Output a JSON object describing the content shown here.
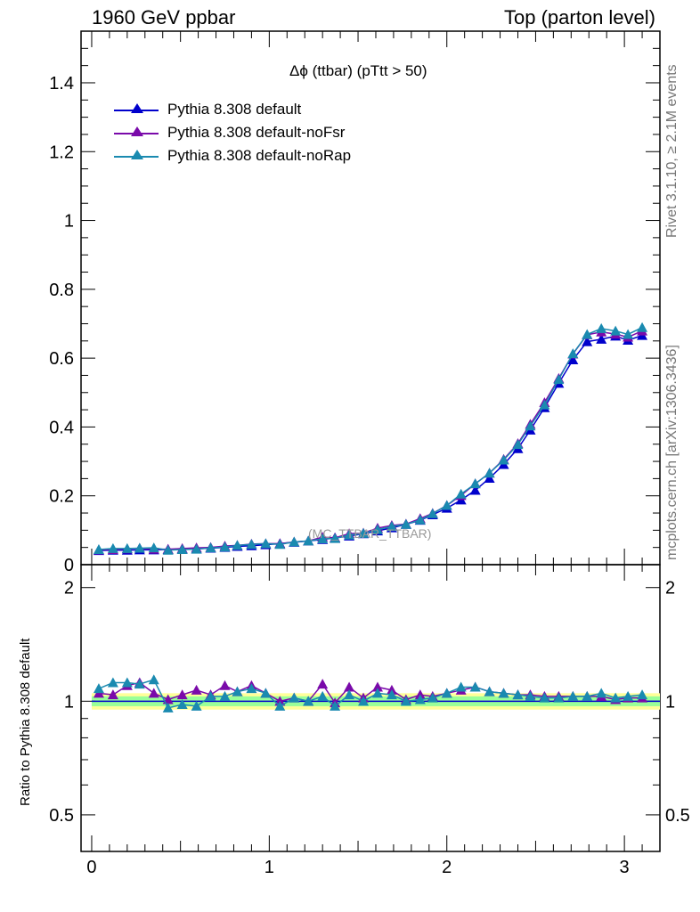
{
  "header": {
    "left": "1960 GeV ppbar",
    "right": "Top (parton level)"
  },
  "side_text": {
    "rivet": "Rivet 3.1.10, ≥ 2.1M events",
    "mcplots": "mcplots.cern.ch [arXiv:1306.3436]"
  },
  "watermark": "(MC_TTBAR_TTBAR)",
  "colors": {
    "default": "#0000cc",
    "noFsr": "#7a0aaa",
    "noRap": "#1a8ab0",
    "band_inner": "#99ff99",
    "band_outer": "#ffff99"
  },
  "chart_data": [
    {
      "type": "line",
      "title": "Δϕ (ttbar) (pTtt > 50)",
      "xlabel": "",
      "ylabel": "",
      "xlim": [
        -0.06,
        3.2
      ],
      "ylim": [
        0,
        1.55
      ],
      "yticks": [
        "0",
        "0.2",
        "0.4",
        "0.6",
        "0.8",
        "1",
        "1.2",
        "1.4"
      ],
      "legend_position": "top-left",
      "x": [
        0.04,
        0.12,
        0.2,
        0.27,
        0.35,
        0.43,
        0.51,
        0.59,
        0.67,
        0.75,
        0.82,
        0.9,
        0.98,
        1.06,
        1.14,
        1.22,
        1.3,
        1.37,
        1.45,
        1.53,
        1.61,
        1.69,
        1.77,
        1.85,
        1.92,
        2.0,
        2.08,
        2.16,
        2.24,
        2.32,
        2.4,
        2.47,
        2.55,
        2.63,
        2.71,
        2.79,
        2.87,
        2.95,
        3.02,
        3.1
      ],
      "series": [
        {
          "name": "Pythia 8.308 default",
          "color": "#0000cc",
          "values": [
            0.041,
            0.042,
            0.042,
            0.043,
            0.043,
            0.044,
            0.045,
            0.046,
            0.048,
            0.05,
            0.053,
            0.055,
            0.058,
            0.061,
            0.065,
            0.069,
            0.073,
            0.078,
            0.083,
            0.09,
            0.098,
            0.107,
            0.117,
            0.129,
            0.145,
            0.164,
            0.188,
            0.216,
            0.251,
            0.291,
            0.337,
            0.391,
            0.456,
            0.527,
            0.595,
            0.648,
            0.655,
            0.664,
            0.652,
            0.666
          ]
        },
        {
          "name": "Pythia 8.308 default-noFsr",
          "color": "#7a0aaa",
          "values": [
            0.043,
            0.044,
            0.046,
            0.048,
            0.045,
            0.045,
            0.047,
            0.049,
            0.05,
            0.054,
            0.056,
            0.06,
            0.061,
            0.061,
            0.066,
            0.069,
            0.08,
            0.078,
            0.09,
            0.092,
            0.106,
            0.114,
            0.118,
            0.134,
            0.149,
            0.172,
            0.201,
            0.235,
            0.266,
            0.306,
            0.352,
            0.408,
            0.471,
            0.541,
            0.612,
            0.668,
            0.676,
            0.67,
            0.661,
            0.679
          ]
        },
        {
          "name": "Pythia 8.308 default-noRap",
          "color": "#1a8ab0",
          "values": [
            0.044,
            0.047,
            0.047,
            0.048,
            0.049,
            0.042,
            0.044,
            0.045,
            0.049,
            0.051,
            0.056,
            0.059,
            0.061,
            0.059,
            0.066,
            0.069,
            0.075,
            0.076,
            0.086,
            0.091,
            0.102,
            0.111,
            0.117,
            0.13,
            0.148,
            0.172,
            0.205,
            0.235,
            0.266,
            0.304,
            0.349,
            0.403,
            0.464,
            0.538,
            0.613,
            0.669,
            0.686,
            0.679,
            0.669,
            0.689
          ]
        }
      ]
    },
    {
      "type": "line",
      "title": "",
      "xlabel": "",
      "ylabel": "Ratio to Pythia 8.308 default",
      "xlim": [
        -0.06,
        3.2
      ],
      "ylim": [
        0.4,
        2.3
      ],
      "yscale": "log",
      "yticks": [
        "0.5",
        "1",
        "2"
      ],
      "xticks": [
        "0",
        "1",
        "2",
        "3"
      ],
      "x": [
        0.04,
        0.12,
        0.2,
        0.27,
        0.35,
        0.43,
        0.51,
        0.59,
        0.67,
        0.75,
        0.82,
        0.9,
        0.98,
        1.06,
        1.14,
        1.22,
        1.3,
        1.37,
        1.45,
        1.53,
        1.61,
        1.69,
        1.77,
        1.85,
        1.92,
        2.0,
        2.08,
        2.16,
        2.24,
        2.32,
        2.4,
        2.47,
        2.55,
        2.63,
        2.71,
        2.79,
        2.87,
        2.95,
        3.02,
        3.1
      ],
      "band": {
        "x_range": [
          0.0,
          3.2
        ],
        "inner": [
          0.97,
          1.03
        ],
        "outer": [
          0.95,
          1.05
        ]
      },
      "series": [
        {
          "name": "Pythia 8.308 default-noFsr",
          "color": "#7a0aaa",
          "values": [
            1.05,
            1.04,
            1.1,
            1.12,
            1.05,
            1.01,
            1.04,
            1.07,
            1.04,
            1.1,
            1.06,
            1.1,
            1.05,
            1.0,
            1.02,
            1.0,
            1.11,
            0.99,
            1.09,
            1.02,
            1.09,
            1.07,
            1.01,
            1.04,
            1.03,
            1.05,
            1.07,
            1.09,
            1.06,
            1.05,
            1.04,
            1.04,
            1.03,
            1.03,
            1.03,
            1.03,
            1.03,
            1.01,
            1.02,
            1.02
          ]
        },
        {
          "name": "Pythia 8.308 default-noRap",
          "color": "#1a8ab0",
          "values": [
            1.08,
            1.12,
            1.12,
            1.11,
            1.14,
            0.96,
            0.98,
            0.97,
            1.03,
            1.03,
            1.06,
            1.08,
            1.05,
            0.97,
            1.02,
            1.0,
            1.03,
            0.97,
            1.04,
            1.0,
            1.05,
            1.04,
            1.0,
            1.01,
            1.02,
            1.05,
            1.09,
            1.09,
            1.06,
            1.05,
            1.04,
            1.03,
            1.02,
            1.02,
            1.03,
            1.03,
            1.05,
            1.02,
            1.03,
            1.04
          ]
        },
        {
          "name": "Pythia 8.308 default",
          "color": "#0000cc",
          "values": [
            1,
            1,
            1,
            1,
            1,
            1,
            1,
            1,
            1,
            1,
            1,
            1,
            1,
            1,
            1,
            1,
            1,
            1,
            1,
            1,
            1,
            1,
            1,
            1,
            1,
            1,
            1,
            1,
            1,
            1,
            1,
            1,
            1,
            1,
            1,
            1,
            1,
            1,
            1,
            1
          ]
        }
      ]
    }
  ]
}
